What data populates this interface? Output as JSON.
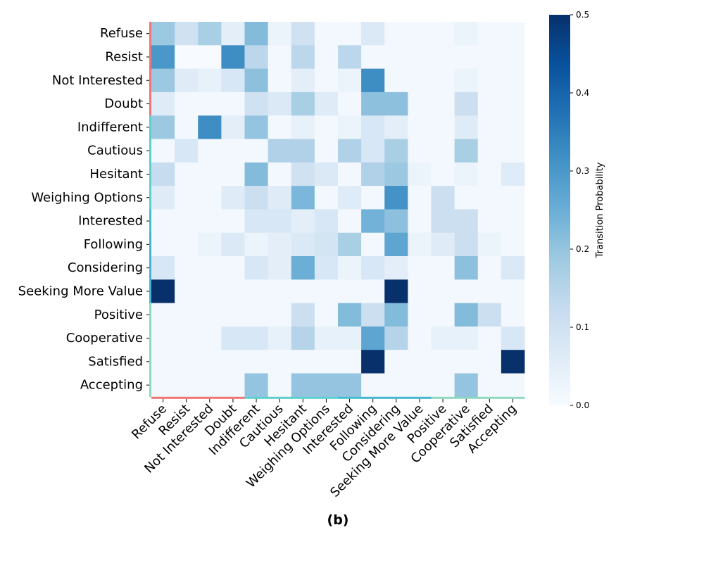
{
  "chart_data": {
    "type": "heatmap",
    "caption": "(b)",
    "rows": [
      "Refuse",
      "Resist",
      "Not Interested",
      "Doubt",
      "Indifferent",
      "Cautious",
      "Hesitant",
      "Weighing Options",
      "Interested",
      "Following",
      "Considering",
      "Seeking More Value",
      "Positive",
      "Cooperative",
      "Satisfied",
      "Accepting"
    ],
    "columns": [
      "Refuse",
      "Resist",
      "Not Interested",
      "Doubt",
      "Indifferent",
      "Cautious",
      "Hesitant",
      "Weighing Options",
      "Interested",
      "Following",
      "Considering",
      "Seeking More Value",
      "Positive",
      "Cooperative",
      "Satisfied",
      "Accepting"
    ],
    "values": [
      [
        0.19,
        0.1,
        0.17,
        0.05,
        0.22,
        0.03,
        0.1,
        0.01,
        0.01,
        0.07,
        0.01,
        0.01,
        0.01,
        0.03,
        0.01,
        0.01
      ],
      [
        0.3,
        0.0,
        0.0,
        0.32,
        0.14,
        0.01,
        0.14,
        0.01,
        0.14,
        0.01,
        0.01,
        0.01,
        0.01,
        0.01,
        0.01,
        0.01
      ],
      [
        0.19,
        0.06,
        0.04,
        0.08,
        0.21,
        0.01,
        0.05,
        0.01,
        0.03,
        0.32,
        0.01,
        0.01,
        0.01,
        0.03,
        0.01,
        0.01
      ],
      [
        0.06,
        0.01,
        0.01,
        0.01,
        0.1,
        0.07,
        0.17,
        0.06,
        0.01,
        0.21,
        0.21,
        0.01,
        0.01,
        0.11,
        0.01,
        0.01
      ],
      [
        0.19,
        0.01,
        0.32,
        0.05,
        0.2,
        0.01,
        0.04,
        0.01,
        0.03,
        0.08,
        0.05,
        0.01,
        0.01,
        0.06,
        0.01,
        0.01
      ],
      [
        0.01,
        0.08,
        0.01,
        0.01,
        0.01,
        0.16,
        0.16,
        0.01,
        0.16,
        0.08,
        0.17,
        0.01,
        0.01,
        0.17,
        0.01,
        0.01
      ],
      [
        0.12,
        0.01,
        0.01,
        0.01,
        0.22,
        0.01,
        0.1,
        0.07,
        0.01,
        0.16,
        0.19,
        0.03,
        0.01,
        0.03,
        0.01,
        0.06
      ],
      [
        0.06,
        0.01,
        0.01,
        0.06,
        0.11,
        0.06,
        0.23,
        0.01,
        0.06,
        0.01,
        0.31,
        0.01,
        0.11,
        0.01,
        0.01,
        0.01
      ],
      [
        0.01,
        0.01,
        0.01,
        0.01,
        0.08,
        0.08,
        0.05,
        0.08,
        0.01,
        0.24,
        0.21,
        0.01,
        0.11,
        0.11,
        0.01,
        0.01
      ],
      [
        0.01,
        0.01,
        0.03,
        0.07,
        0.03,
        0.05,
        0.07,
        0.09,
        0.17,
        0.01,
        0.27,
        0.03,
        0.06,
        0.11,
        0.03,
        0.01
      ],
      [
        0.08,
        0.01,
        0.01,
        0.01,
        0.08,
        0.05,
        0.25,
        0.08,
        0.03,
        0.08,
        0.05,
        0.01,
        0.01,
        0.21,
        0.01,
        0.07
      ],
      [
        0.5,
        0.01,
        0.01,
        0.01,
        0.01,
        0.01,
        0.01,
        0.01,
        0.01,
        0.01,
        0.5,
        0.01,
        0.01,
        0.01,
        0.01,
        0.01
      ],
      [
        0.01,
        0.01,
        0.01,
        0.01,
        0.01,
        0.01,
        0.11,
        0.01,
        0.22,
        0.11,
        0.22,
        0.01,
        0.01,
        0.22,
        0.11,
        0.01
      ],
      [
        0.01,
        0.01,
        0.01,
        0.08,
        0.08,
        0.04,
        0.15,
        0.04,
        0.04,
        0.27,
        0.15,
        0.01,
        0.04,
        0.04,
        0.01,
        0.08
      ],
      [
        0.01,
        0.01,
        0.01,
        0.01,
        0.01,
        0.01,
        0.01,
        0.01,
        0.01,
        0.5,
        0.01,
        0.01,
        0.01,
        0.01,
        0.01,
        0.5
      ],
      [
        0.01,
        0.01,
        0.01,
        0.01,
        0.2,
        0.01,
        0.2,
        0.2,
        0.2,
        0.01,
        0.01,
        0.01,
        0.01,
        0.2,
        0.01,
        0.01
      ]
    ],
    "vmin": 0.0,
    "vmax": 0.5,
    "colormap": "Blues",
    "colorbar": {
      "label": "Transition Probability",
      "ticks": [
        "0.0",
        "0.1",
        "0.2",
        "0.3",
        "0.4",
        "0.5"
      ],
      "tick_values": [
        0.0,
        0.1,
        0.2,
        0.3,
        0.4,
        0.5
      ]
    },
    "group_strip_colors": [
      "#f07575",
      "#f07575",
      "#f07575",
      "#f07575",
      "#5ecfcf",
      "#5ecfcf",
      "#5ecfcf",
      "#5ecfcf",
      "#45bfcf",
      "#45b5d4",
      "#45b5d4",
      "#45b5d4",
      "#8fd8c0",
      "#8fd8c0",
      "#8fd8c0",
      "#8fd8c0"
    ]
  }
}
